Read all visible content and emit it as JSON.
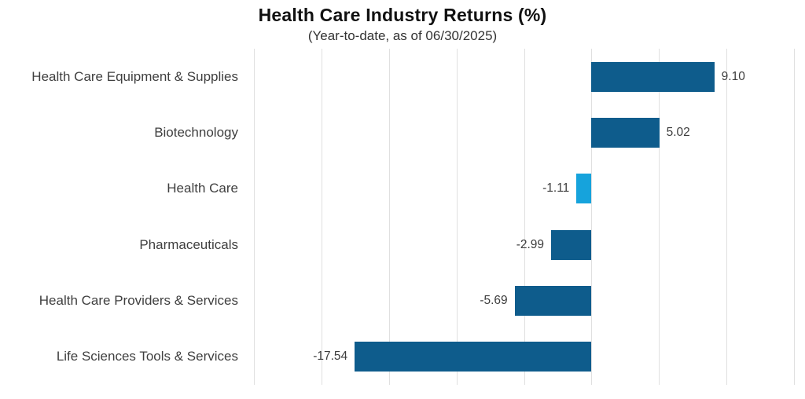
{
  "header": {
    "title": "Health Care Industry Returns (%)",
    "subtitle": "(Year-to-date, as of 06/30/2025)"
  },
  "colors": {
    "bar_default": "#0E5C8C",
    "bar_highlight": "#16A3DC",
    "grid": "#e0e0e0",
    "title_text": "#111111",
    "subtitle_text": "#333333",
    "label_text": "#3f3f3f",
    "value_text": "#3d3d3d"
  },
  "chart_data": {
    "type": "bar",
    "orientation": "horizontal",
    "title": "Health Care Industry Returns (%)",
    "subtitle": "(Year-to-date, as of 06/30/2025)",
    "categories": [
      "Health Care Equipment & Supplies",
      "Biotechnology",
      "Health Care",
      "Pharmaceuticals",
      "Health Care Providers & Services",
      "Life Sciences Tools & Services"
    ],
    "values": [
      9.1,
      5.02,
      -1.11,
      -2.99,
      -5.69,
      -17.54
    ],
    "value_labels": [
      "9.10",
      "5.02",
      "-1.11",
      "-2.99",
      "-5.69",
      "-17.54"
    ],
    "highlighted_category": "Health Care",
    "xlim": [
      -25,
      15
    ],
    "gridline_step": 5,
    "grid": true,
    "axis_tick_labels_visible": false,
    "legend": false
  }
}
